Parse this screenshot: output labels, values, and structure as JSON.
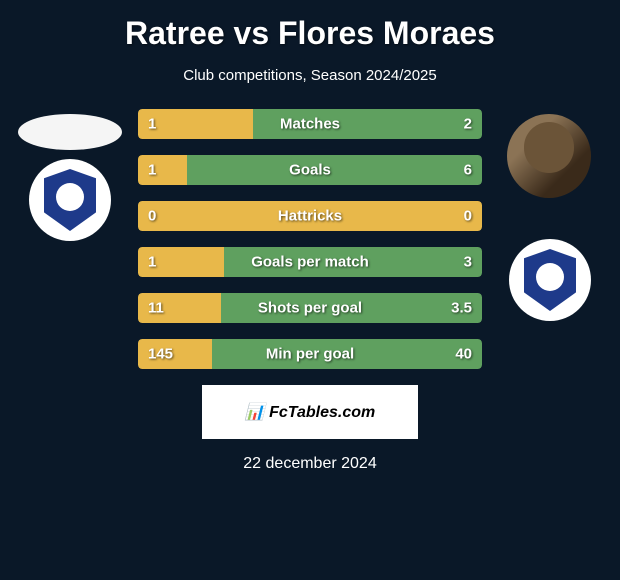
{
  "title": "Ratree vs Flores Moraes",
  "subtitle": "Club competitions, Season 2024/2025",
  "colors": {
    "background": "#0a1828",
    "yellow": "#e8b84a",
    "green": "#5fa05f",
    "green_dark": "#4a8a4a",
    "text": "#ffffff"
  },
  "player_left": {
    "name": "Ratree",
    "club_primary": "#1e3a8a"
  },
  "player_right": {
    "name": "Flores Moraes",
    "club_primary": "#1e3a8a"
  },
  "stats": [
    {
      "label": "Matches",
      "left_val": "1",
      "right_val": "2",
      "left_pct": 33.3,
      "right_pct": 66.7,
      "left_color": "#e8b84a",
      "right_color": "#5fa05f"
    },
    {
      "label": "Goals",
      "left_val": "1",
      "right_val": "6",
      "left_pct": 14.3,
      "right_pct": 85.7,
      "left_color": "#e8b84a",
      "right_color": "#5fa05f"
    },
    {
      "label": "Hattricks",
      "left_val": "0",
      "right_val": "0",
      "left_pct": 50,
      "right_pct": 50,
      "left_color": "#e8b84a",
      "right_color": "#e8b84a"
    },
    {
      "label": "Goals per match",
      "left_val": "1",
      "right_val": "3",
      "left_pct": 25,
      "right_pct": 75,
      "left_color": "#e8b84a",
      "right_color": "#5fa05f"
    },
    {
      "label": "Shots per goal",
      "left_val": "11",
      "right_val": "3.5",
      "left_pct": 24.1,
      "right_pct": 75.9,
      "left_color": "#e8b84a",
      "right_color": "#5fa05f"
    },
    {
      "label": "Min per goal",
      "left_val": "145",
      "right_val": "40",
      "left_pct": 21.6,
      "right_pct": 78.4,
      "left_color": "#e8b84a",
      "right_color": "#5fa05f"
    }
  ],
  "brand": "FcTables.com",
  "date": "22 december 2024"
}
